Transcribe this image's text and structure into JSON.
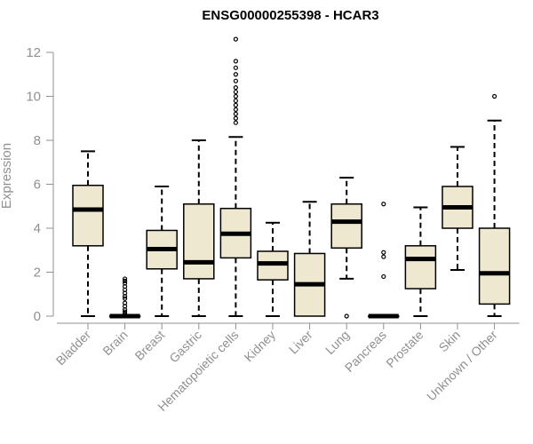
{
  "chart_data": {
    "type": "box",
    "title": "ENSG00000255398 - HCAR3",
    "ylabel": "Expression",
    "xlabel": "",
    "ylim": [
      0,
      12.6
    ],
    "yticks": [
      0,
      2,
      4,
      6,
      8,
      10,
      12
    ],
    "box_fill": "#efe8d0",
    "box_stroke": "#000000",
    "axis_color": "#909090",
    "categories": [
      "Bladder",
      "Brain",
      "Breast",
      "Gastric",
      "Hematopoietic cells",
      "Kidney",
      "Liver",
      "Lung",
      "Pancreas",
      "Prostate",
      "Skin",
      "Unknown / Other"
    ],
    "boxes": [
      {
        "label": "Bladder",
        "whisker_low": 0,
        "q1": 3.2,
        "median": 4.85,
        "q3": 5.95,
        "whisker_high": 7.5,
        "outliers": []
      },
      {
        "label": "Brain",
        "whisker_low": 0,
        "q1": 0,
        "median": 0,
        "q3": 0,
        "whisker_high": 0,
        "outliers": [
          0.1,
          0.2,
          0.3,
          0.45,
          0.6,
          0.8,
          0.9,
          1.05,
          1.2,
          1.35,
          1.5,
          1.6,
          1.7
        ]
      },
      {
        "label": "Breast",
        "whisker_low": 0,
        "q1": 2.15,
        "median": 3.05,
        "q3": 3.9,
        "whisker_high": 5.9,
        "outliers": []
      },
      {
        "label": "Gastric",
        "whisker_low": 0,
        "q1": 1.7,
        "median": 2.45,
        "q3": 5.1,
        "whisker_high": 8.0,
        "outliers": []
      },
      {
        "label": "Hematopoietic cells",
        "whisker_low": 0,
        "q1": 2.65,
        "median": 3.75,
        "q3": 4.9,
        "whisker_high": 8.15,
        "outliers": [
          8.8,
          9.0,
          9.2,
          9.4,
          9.6,
          9.8,
          10.0,
          10.2,
          10.4,
          10.7,
          11.0,
          11.3,
          11.6,
          12.6
        ]
      },
      {
        "label": "Kidney",
        "whisker_low": 0,
        "q1": 1.65,
        "median": 2.4,
        "q3": 2.95,
        "whisker_high": 4.25,
        "outliers": []
      },
      {
        "label": "Liver",
        "whisker_low": 0,
        "q1": 0,
        "median": 1.45,
        "q3": 2.85,
        "whisker_high": 5.2,
        "outliers": []
      },
      {
        "label": "Lung",
        "whisker_low": 1.7,
        "q1": 3.1,
        "median": 4.3,
        "q3": 5.1,
        "whisker_high": 6.3,
        "outliers": [
          0
        ]
      },
      {
        "label": "Pancreas",
        "whisker_low": 0,
        "q1": 0,
        "median": 0,
        "q3": 0,
        "whisker_high": 0,
        "outliers": [
          1.8,
          2.7,
          2.9,
          5.1
        ]
      },
      {
        "label": "Prostate",
        "whisker_low": 0,
        "q1": 1.25,
        "median": 2.6,
        "q3": 3.2,
        "whisker_high": 4.95,
        "outliers": []
      },
      {
        "label": "Skin",
        "whisker_low": 2.1,
        "q1": 4.0,
        "median": 4.95,
        "q3": 5.9,
        "whisker_high": 7.7,
        "outliers": []
      },
      {
        "label": "Unknown / Other",
        "whisker_low": 0,
        "q1": 0.55,
        "median": 1.95,
        "q3": 4.0,
        "whisker_high": 8.9,
        "outliers": [
          10.0
        ]
      }
    ]
  }
}
